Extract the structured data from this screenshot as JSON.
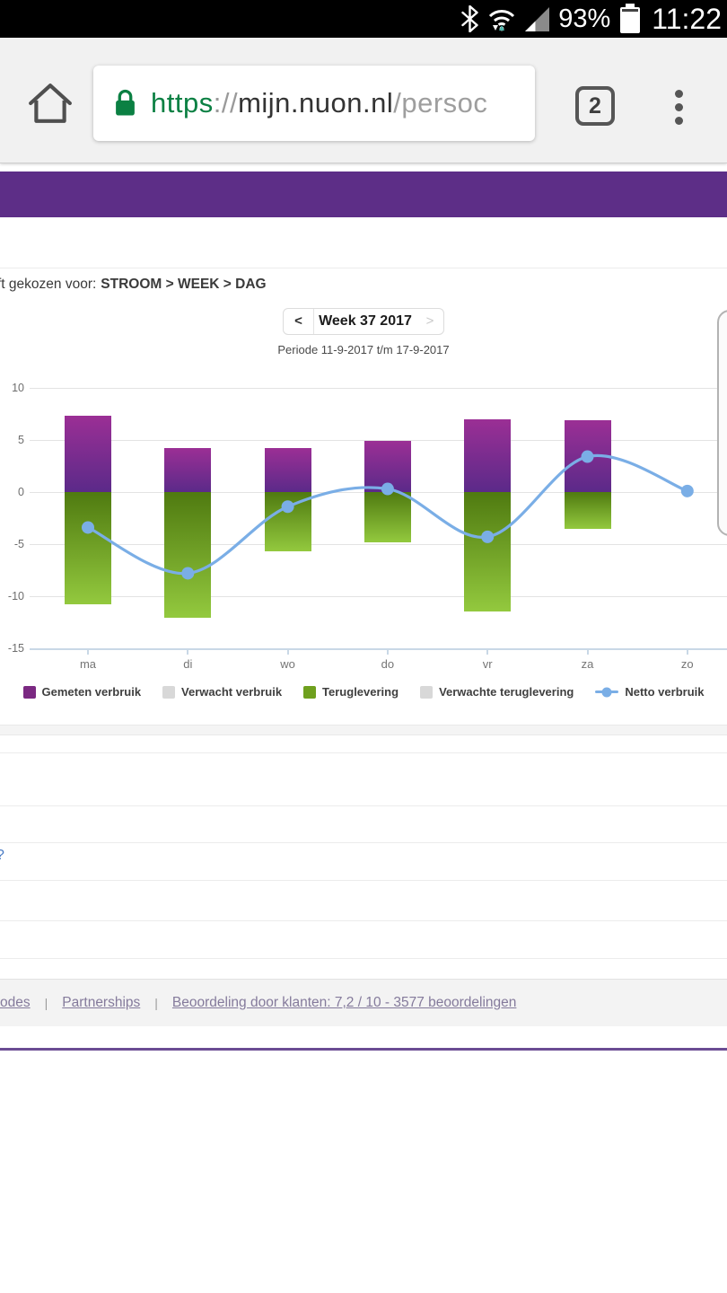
{
  "status_bar": {
    "battery_percent": "93%",
    "time": "11:22",
    "icons": [
      "bluetooth-icon",
      "wifi-icon",
      "cell-signal-icon",
      "battery-icon"
    ]
  },
  "browser": {
    "url": {
      "scheme": "https",
      "separator": "://",
      "host": "mijn.nuon.nl",
      "path": "/persoc"
    },
    "tab_count": "2"
  },
  "page": {
    "breadcrumb_prefix": "ft gekozen voor:",
    "breadcrumb_bold": "STROOM > WEEK > DAG",
    "week_nav": {
      "prev": "<",
      "label": "Week 37 2017",
      "next": ">"
    },
    "period": "Periode 11-9-2017 t/m 17-9-2017",
    "stray_fragment": "?",
    "footer": {
      "links": [
        "odes",
        "Partnerships",
        "Beoordeling door klanten: 7,2 / 10 - 3577 beoordelingen"
      ],
      "separator": "|"
    }
  },
  "chart_data": {
    "type": "bar",
    "title": "",
    "xlabel": "",
    "ylabel": "",
    "categories": [
      "ma",
      "di",
      "wo",
      "do",
      "vr",
      "za",
      "zo"
    ],
    "series": [
      {
        "name": "Gemeten verbruik",
        "type": "bar",
        "values": [
          7.3,
          4.2,
          4.2,
          4.9,
          7.0,
          6.9,
          null
        ],
        "color_top": "#9b2f95",
        "color_bottom": "#5b2a89"
      },
      {
        "name": "Verwacht verbruik",
        "type": "bar",
        "values": [
          null,
          null,
          null,
          null,
          null,
          null,
          null
        ],
        "color": "#d8d8d8"
      },
      {
        "name": "Teruglevering",
        "type": "bar",
        "values": [
          -10.8,
          -12.1,
          -5.7,
          -4.8,
          -11.5,
          -3.5,
          null
        ],
        "color_top": "#4f7a10",
        "color_bottom": "#93c93e"
      },
      {
        "name": "Verwachte teruglevering",
        "type": "bar",
        "values": [
          null,
          null,
          null,
          null,
          null,
          null,
          null
        ],
        "color": "#d8d8d8"
      },
      {
        "name": "Netto verbruik",
        "type": "line",
        "values": [
          -3.4,
          -7.8,
          -1.4,
          0.3,
          -4.3,
          3.4,
          0.1
        ],
        "color": "#7aaee6"
      }
    ],
    "yticks": [
      10,
      5,
      0,
      -5,
      -10,
      -15
    ],
    "ylim": [
      -15,
      10
    ],
    "grid": true,
    "legend_position": "bottom",
    "legend": [
      {
        "label": "Gemeten verbruik",
        "swatch": "#7b2982",
        "type": "square"
      },
      {
        "label": "Verwacht verbruik",
        "swatch": "#d8d8d8",
        "type": "square"
      },
      {
        "label": "Teruglevering",
        "swatch": "#6fa01e",
        "type": "square"
      },
      {
        "label": "Verwachte teruglevering",
        "swatch": "#d8d8d8",
        "type": "square"
      },
      {
        "label": "Netto verbruik",
        "swatch": "#7aaee6",
        "type": "line-dot"
      }
    ]
  }
}
